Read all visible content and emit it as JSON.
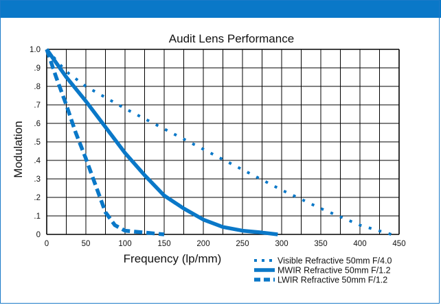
{
  "chart_data": {
    "type": "line",
    "title": "Audit Lens Performance",
    "xlabel": "Frequency (lp/mm)",
    "ylabel": "Modulation",
    "xlim": [
      0,
      450
    ],
    "ylim": [
      0,
      1.0
    ],
    "x_ticks": [
      "0",
      "50",
      "100",
      "150",
      "200",
      "250",
      "300",
      "350",
      "400",
      "450"
    ],
    "y_ticks": [
      "0",
      ".1",
      ".2",
      ".3",
      ".4",
      ".5",
      ".6",
      ".7",
      ".8",
      ".9",
      "1.0"
    ],
    "grid": true,
    "legend_position": "bottom-right",
    "series": [
      {
        "name": "Visible Refractive 50mm F/4.0",
        "style": "dotted",
        "x": [
          0,
          25,
          50,
          100,
          150,
          200,
          250,
          300,
          350,
          400,
          440
        ],
        "y": [
          1.0,
          0.88,
          0.8,
          0.68,
          0.57,
          0.46,
          0.35,
          0.24,
          0.14,
          0.05,
          0.0
        ]
      },
      {
        "name": "MWIR Refractive 50mm F/1.2",
        "style": "solid",
        "x": [
          0,
          25,
          50,
          75,
          100,
          125,
          150,
          175,
          200,
          225,
          250,
          275,
          295
        ],
        "y": [
          1.0,
          0.85,
          0.72,
          0.58,
          0.44,
          0.32,
          0.21,
          0.14,
          0.08,
          0.04,
          0.02,
          0.01,
          0.0
        ]
      },
      {
        "name": "LWIR Refractive 50mm F/1.2",
        "style": "dashed",
        "x": [
          0,
          12,
          25,
          37,
          50,
          62,
          75,
          87,
          100,
          125,
          150
        ],
        "y": [
          1.0,
          0.85,
          0.7,
          0.55,
          0.41,
          0.27,
          0.12,
          0.05,
          0.02,
          0.01,
          0.0
        ]
      }
    ],
    "colors": {
      "line": "#0a78c8",
      "header": "#0a78c8",
      "grid": "#000000"
    }
  }
}
